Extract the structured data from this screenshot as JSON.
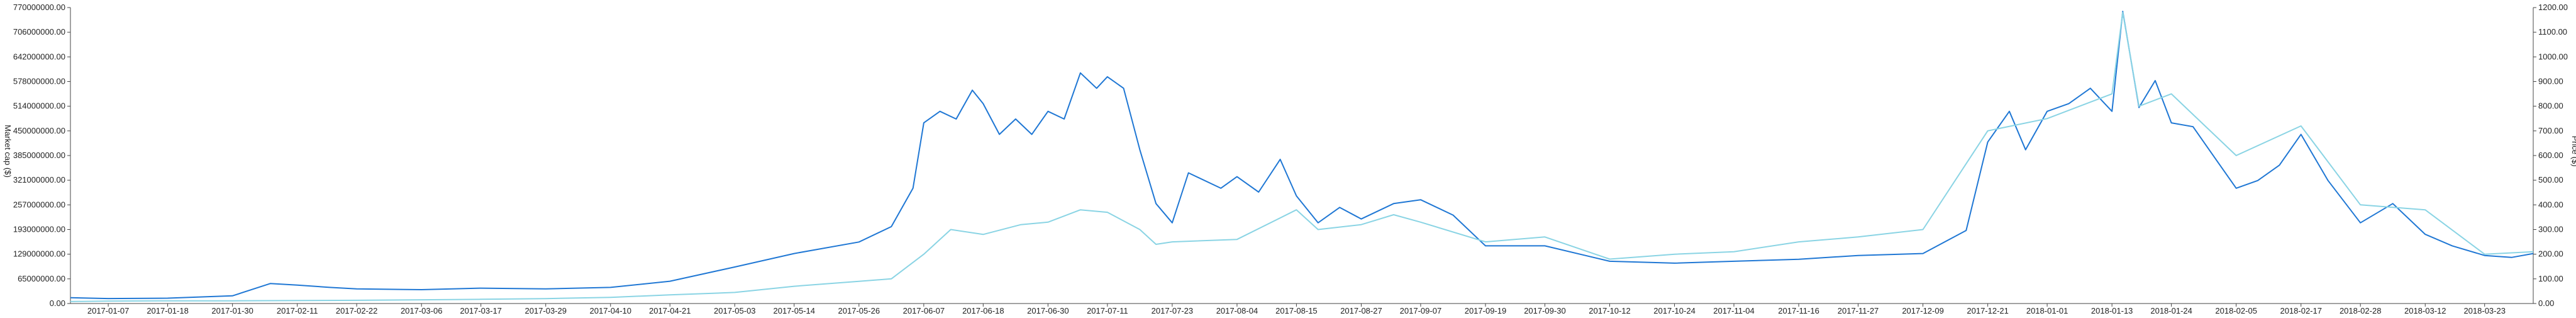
{
  "chart_data": {
    "type": "line",
    "title": "",
    "left_axis": {
      "label": "Market cap ($)",
      "ylim": [
        0,
        770000000
      ],
      "ticks": [
        "0.00",
        "65000000.00",
        "129000000.00",
        "193000000.00",
        "257000000.00",
        "321000000.00",
        "385000000.00",
        "450000000.00",
        "514000000.00",
        "578000000.00",
        "642000000.00",
        "706000000.00",
        "770000000.00"
      ]
    },
    "right_axis": {
      "label": "Price ($)",
      "ylim": [
        0,
        1200
      ],
      "ticks": [
        "0.00",
        "100.00",
        "200.00",
        "300.00",
        "400.00",
        "500.00",
        "600.00",
        "700.00",
        "800.00",
        "900.00",
        "1000.00",
        "1100.00",
        "1200.00"
      ]
    },
    "x_axis": {
      "start": "2016-12-31",
      "end": "2018-04-01",
      "tick_labels": [
        "2017-01-07",
        "2017-01-18",
        "2017-01-30",
        "2017-02-11",
        "2017-02-22",
        "2017-03-06",
        "2017-03-17",
        "2017-03-29",
        "2017-04-10",
        "2017-04-21",
        "2017-05-03",
        "2017-05-14",
        "2017-05-26",
        "2017-06-07",
        "2017-06-18",
        "2017-06-30",
        "2017-07-11",
        "2017-07-23",
        "2017-08-04",
        "2017-08-15",
        "2017-08-27",
        "2017-09-07",
        "2017-09-19",
        "2017-09-30",
        "2017-10-12",
        "2017-10-24",
        "2017-11-04",
        "2017-11-16",
        "2017-11-27",
        "2017-12-09",
        "2017-12-21",
        "2018-01-01",
        "2018-01-13",
        "2018-01-24",
        "2018-02-05",
        "2018-02-17",
        "2018-02-28",
        "2018-03-12",
        "2018-03-23"
      ]
    },
    "series": [
      {
        "axis": "left",
        "color": "#1f77d4",
        "points": [
          [
            "2016-12-31",
            15000000
          ],
          [
            "2017-01-07",
            13000000
          ],
          [
            "2017-01-18",
            14000000
          ],
          [
            "2017-01-30",
            20000000
          ],
          [
            "2017-02-06",
            52000000
          ],
          [
            "2017-02-11",
            48000000
          ],
          [
            "2017-02-17",
            42000000
          ],
          [
            "2017-02-22",
            38000000
          ],
          [
            "2017-03-06",
            36000000
          ],
          [
            "2017-03-17",
            40000000
          ],
          [
            "2017-03-29",
            38000000
          ],
          [
            "2017-04-10",
            42000000
          ],
          [
            "2017-04-21",
            58000000
          ],
          [
            "2017-05-03",
            95000000
          ],
          [
            "2017-05-14",
            130000000
          ],
          [
            "2017-05-26",
            160000000
          ],
          [
            "2017-06-01",
            200000000
          ],
          [
            "2017-06-05",
            300000000
          ],
          [
            "2017-06-07",
            470000000
          ],
          [
            "2017-06-10",
            500000000
          ],
          [
            "2017-06-13",
            480000000
          ],
          [
            "2017-06-16",
            555000000
          ],
          [
            "2017-06-18",
            520000000
          ],
          [
            "2017-06-21",
            440000000
          ],
          [
            "2017-06-24",
            480000000
          ],
          [
            "2017-06-27",
            440000000
          ],
          [
            "2017-06-30",
            500000000
          ],
          [
            "2017-07-03",
            480000000
          ],
          [
            "2017-07-06",
            600000000
          ],
          [
            "2017-07-09",
            560000000
          ],
          [
            "2017-07-11",
            590000000
          ],
          [
            "2017-07-14",
            560000000
          ],
          [
            "2017-07-17",
            400000000
          ],
          [
            "2017-07-20",
            260000000
          ],
          [
            "2017-07-23",
            210000000
          ],
          [
            "2017-07-26",
            340000000
          ],
          [
            "2017-08-01",
            300000000
          ],
          [
            "2017-08-04",
            330000000
          ],
          [
            "2017-08-08",
            290000000
          ],
          [
            "2017-08-12",
            375000000
          ],
          [
            "2017-08-15",
            280000000
          ],
          [
            "2017-08-19",
            210000000
          ],
          [
            "2017-08-23",
            250000000
          ],
          [
            "2017-08-27",
            220000000
          ],
          [
            "2017-09-02",
            260000000
          ],
          [
            "2017-09-07",
            270000000
          ],
          [
            "2017-09-13",
            230000000
          ],
          [
            "2017-09-19",
            150000000
          ],
          [
            "2017-09-30",
            150000000
          ],
          [
            "2017-10-12",
            110000000
          ],
          [
            "2017-10-24",
            105000000
          ],
          [
            "2017-11-04",
            110000000
          ],
          [
            "2017-11-16",
            115000000
          ],
          [
            "2017-11-27",
            125000000
          ],
          [
            "2017-12-09",
            130000000
          ],
          [
            "2017-12-17",
            190000000
          ],
          [
            "2017-12-21",
            420000000
          ],
          [
            "2017-12-25",
            500000000
          ],
          [
            "2017-12-28",
            400000000
          ],
          [
            "2018-01-01",
            500000000
          ],
          [
            "2018-01-05",
            520000000
          ],
          [
            "2018-01-09",
            560000000
          ],
          [
            "2018-01-13",
            500000000
          ],
          [
            "2018-01-15",
            760000000
          ],
          [
            "2018-01-18",
            510000000
          ],
          [
            "2018-01-21",
            580000000
          ],
          [
            "2018-01-24",
            470000000
          ],
          [
            "2018-01-28",
            460000000
          ],
          [
            "2018-02-01",
            380000000
          ],
          [
            "2018-02-05",
            300000000
          ],
          [
            "2018-02-09",
            320000000
          ],
          [
            "2018-02-13",
            360000000
          ],
          [
            "2018-02-17",
            440000000
          ],
          [
            "2018-02-22",
            320000000
          ],
          [
            "2018-02-28",
            210000000
          ],
          [
            "2018-03-06",
            260000000
          ],
          [
            "2018-03-12",
            180000000
          ],
          [
            "2018-03-17",
            150000000
          ],
          [
            "2018-03-23",
            125000000
          ],
          [
            "2018-03-28",
            120000000
          ],
          [
            "2018-04-01",
            130000000
          ]
        ]
      },
      {
        "axis": "right",
        "color": "#8ad4e4",
        "points": [
          [
            "2016-12-31",
            8
          ],
          [
            "2017-01-07",
            10
          ],
          [
            "2017-01-18",
            11
          ],
          [
            "2017-01-30",
            11
          ],
          [
            "2017-02-11",
            12
          ],
          [
            "2017-02-22",
            13
          ],
          [
            "2017-03-06",
            15
          ],
          [
            "2017-03-17",
            17
          ],
          [
            "2017-03-29",
            20
          ],
          [
            "2017-04-10",
            25
          ],
          [
            "2017-04-21",
            35
          ],
          [
            "2017-05-03",
            45
          ],
          [
            "2017-05-14",
            70
          ],
          [
            "2017-05-26",
            90
          ],
          [
            "2017-06-01",
            100
          ],
          [
            "2017-06-07",
            200
          ],
          [
            "2017-06-12",
            300
          ],
          [
            "2017-06-18",
            280
          ],
          [
            "2017-06-25",
            320
          ],
          [
            "2017-06-30",
            330
          ],
          [
            "2017-07-06",
            380
          ],
          [
            "2017-07-11",
            370
          ],
          [
            "2017-07-17",
            300
          ],
          [
            "2017-07-20",
            240
          ],
          [
            "2017-07-23",
            250
          ],
          [
            "2017-08-04",
            260
          ],
          [
            "2017-08-15",
            380
          ],
          [
            "2017-08-19",
            300
          ],
          [
            "2017-08-27",
            320
          ],
          [
            "2017-09-02",
            360
          ],
          [
            "2017-09-07",
            330
          ],
          [
            "2017-09-19",
            250
          ],
          [
            "2017-09-30",
            270
          ],
          [
            "2017-10-12",
            180
          ],
          [
            "2017-10-24",
            200
          ],
          [
            "2017-11-04",
            210
          ],
          [
            "2017-11-16",
            250
          ],
          [
            "2017-11-27",
            270
          ],
          [
            "2017-12-09",
            300
          ],
          [
            "2017-12-21",
            700
          ],
          [
            "2018-01-01",
            750
          ],
          [
            "2018-01-07",
            800
          ],
          [
            "2018-01-13",
            850
          ],
          [
            "2018-01-15",
            1180
          ],
          [
            "2018-01-18",
            800
          ],
          [
            "2018-01-24",
            850
          ],
          [
            "2018-02-05",
            600
          ],
          [
            "2018-02-17",
            720
          ],
          [
            "2018-02-28",
            400
          ],
          [
            "2018-03-12",
            380
          ],
          [
            "2018-03-23",
            200
          ],
          [
            "2018-04-01",
            210
          ]
        ]
      }
    ],
    "grid": false
  }
}
